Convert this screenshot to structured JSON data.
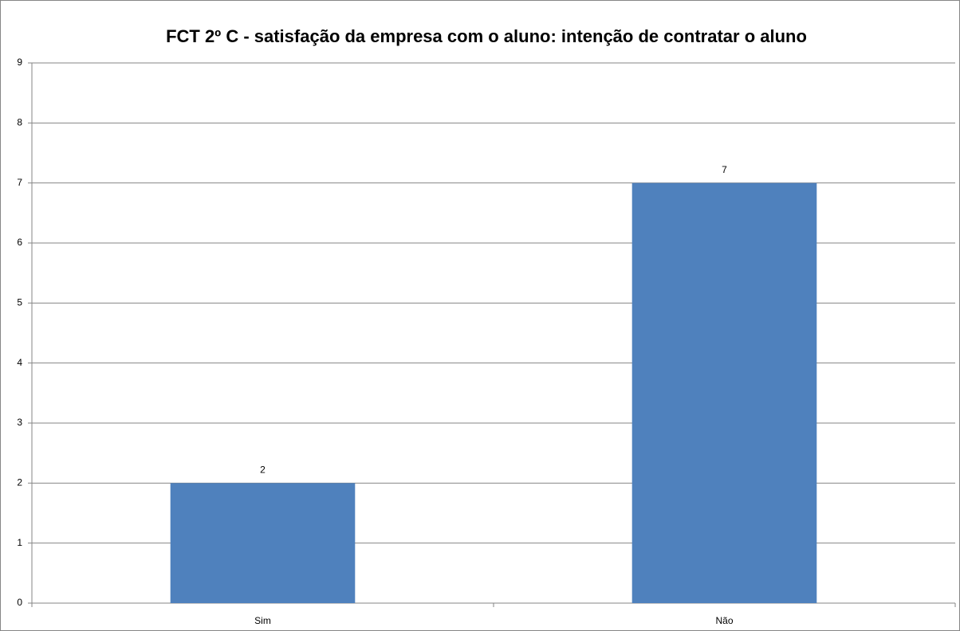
{
  "chart_data": {
    "type": "bar",
    "title": "FCT 2º C - satisfação da empresa com o aluno: intenção de contratar o aluno",
    "categories": [
      "Sim",
      "Não"
    ],
    "values": [
      2,
      7
    ],
    "color": "#4f81bd",
    "ylim": [
      0,
      9
    ],
    "yticks": [
      0,
      1,
      2,
      3,
      4,
      5,
      6,
      7,
      8,
      9
    ],
    "grid": true
  }
}
